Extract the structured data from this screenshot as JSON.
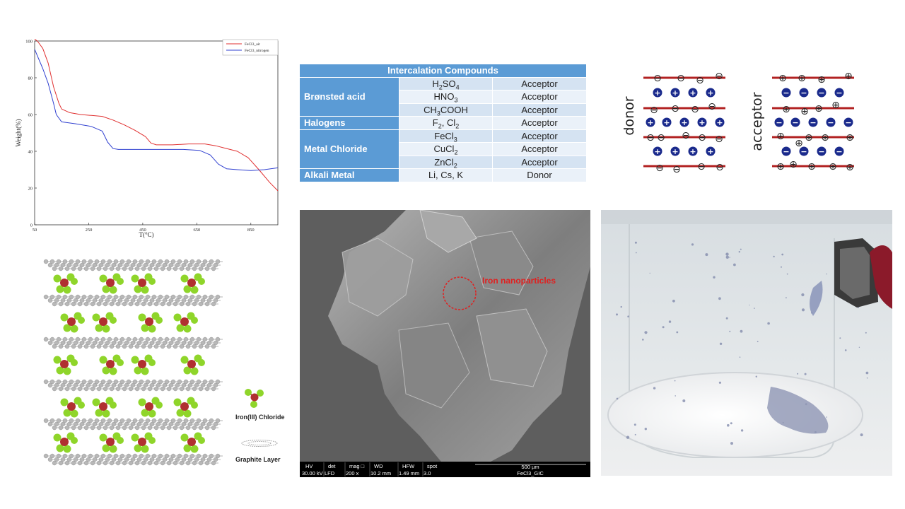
{
  "chart_data": {
    "type": "line",
    "title": "",
    "xlabel": "T(°C)",
    "ylabel": "Weight(%)",
    "xlim": [
      50,
      950
    ],
    "ylim": [
      0,
      100
    ],
    "x_ticks": [
      "50",
      "250",
      "450",
      "650",
      "850"
    ],
    "y_ticks": [
      "0",
      "20",
      "40",
      "60",
      "80",
      "100"
    ],
    "legend_position": "top-right",
    "series": [
      {
        "name": "FeCl3_air",
        "color": "#e03030",
        "x": [
          50,
          60,
          80,
          100,
          120,
          140,
          150,
          180,
          220,
          260,
          300,
          340,
          380,
          420,
          460,
          480,
          500,
          560,
          620,
          680,
          720,
          760,
          800,
          840,
          880,
          920,
          950
        ],
        "y": [
          101,
          100,
          96,
          88,
          75,
          66,
          63,
          61,
          60,
          59.5,
          59,
          57,
          54.5,
          51.5,
          48,
          44.5,
          43.5,
          43.5,
          44,
          44,
          43,
          41.5,
          40,
          36.5,
          30,
          23,
          18.5
        ]
      },
      {
        "name": "FeCl3_nitrogen",
        "color": "#3040d0",
        "x": [
          50,
          60,
          80,
          100,
          120,
          130,
          150,
          200,
          260,
          300,
          320,
          340,
          360,
          400,
          500,
          600,
          660,
          700,
          730,
          760,
          800,
          850,
          900,
          950
        ],
        "y": [
          95.5,
          92,
          85,
          77,
          66,
          60,
          56,
          55,
          53.5,
          51,
          45,
          41.5,
          41,
          41,
          41,
          41,
          40.5,
          38,
          33,
          30.5,
          30,
          29.5,
          30,
          31
        ]
      }
    ]
  },
  "table": {
    "header": "Intercalation Compounds",
    "groups": [
      {
        "category": "Brønsted acid",
        "rows": [
          {
            "compound": "H2SO4",
            "type": "Acceptor"
          },
          {
            "compound": "HNO3",
            "type": "Acceptor"
          },
          {
            "compound": "CH3COOH",
            "type": "Acceptor"
          }
        ]
      },
      {
        "category": "Halogens",
        "rows": [
          {
            "compound": "F2, Cl2",
            "type": "Acceptor"
          }
        ]
      },
      {
        "category": "Metal Chloride",
        "rows": [
          {
            "compound": "FeCl3",
            "type": "Acceptor"
          },
          {
            "compound": "CuCl2",
            "type": "Acceptor"
          },
          {
            "compound": "ZnCl2",
            "type": "Acceptor"
          }
        ]
      },
      {
        "category": "Alkali Metal",
        "rows": [
          {
            "compound": "Li, Cs, K",
            "type": "Donor"
          }
        ]
      }
    ]
  },
  "diagram": {
    "donor_label": "donor",
    "acceptor_label": "acceptor",
    "layer_color": "#b22222",
    "ion_color": "#1a2a8c",
    "plus": "+",
    "minus": "−",
    "plus_circled": "⊕",
    "minus_circled": "⊖"
  },
  "molecule": {
    "legend_iron": "Iron(III) Chloride",
    "legend_graphite": "Graphite Layer",
    "iron_color": "#b03030",
    "chlorine_color": "#8fd52a",
    "carbon_color": "#b8b8b8"
  },
  "sem": {
    "annotation": "Iron nanoparticles",
    "annotation_color": "#e02020",
    "headers": [
      "HV",
      "det",
      "mag □",
      "WD",
      "HFW",
      "spot"
    ],
    "values": [
      "30.00 kV",
      "LFD",
      "200 x",
      "10.2 mm",
      "1.49 mm",
      "3.0"
    ],
    "scale": "500 µm",
    "sample": "FeCl3_GIC"
  }
}
